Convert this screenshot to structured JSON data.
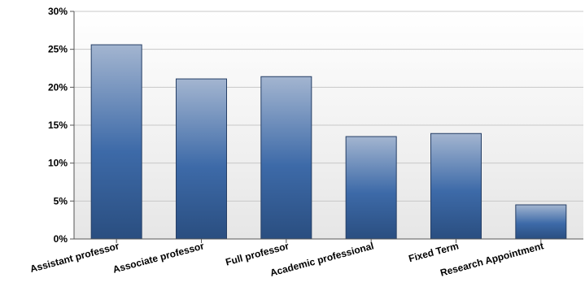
{
  "chart_data": {
    "type": "bar",
    "title": "",
    "xlabel": "",
    "ylabel": "",
    "categories": [
      "Assistant professor",
      "Associate professor",
      "Full professor",
      "Academic professional",
      "Fixed Term",
      "Research Appointment"
    ],
    "values": [
      25.6,
      21.1,
      21.4,
      13.5,
      13.9,
      4.5
    ],
    "ylim": [
      0,
      30
    ],
    "yticks": [
      0,
      5,
      10,
      15,
      20,
      25,
      30
    ],
    "ytick_labels": [
      "0%",
      "5%",
      "10%",
      "15%",
      "20%",
      "25%",
      "30%"
    ],
    "grid": true,
    "legend": "none",
    "colors": {
      "bar_top": "#a3b5d0",
      "bar_mid": "#3d6aa8",
      "bar_bottom": "#2a4e80",
      "bar_edge": "#263f66",
      "plot_bg_top": "#ffffff",
      "plot_bg_bottom": "#e6e6e6",
      "grid": "#c8c8c8",
      "axis": "#555555",
      "text": "#000000"
    }
  }
}
